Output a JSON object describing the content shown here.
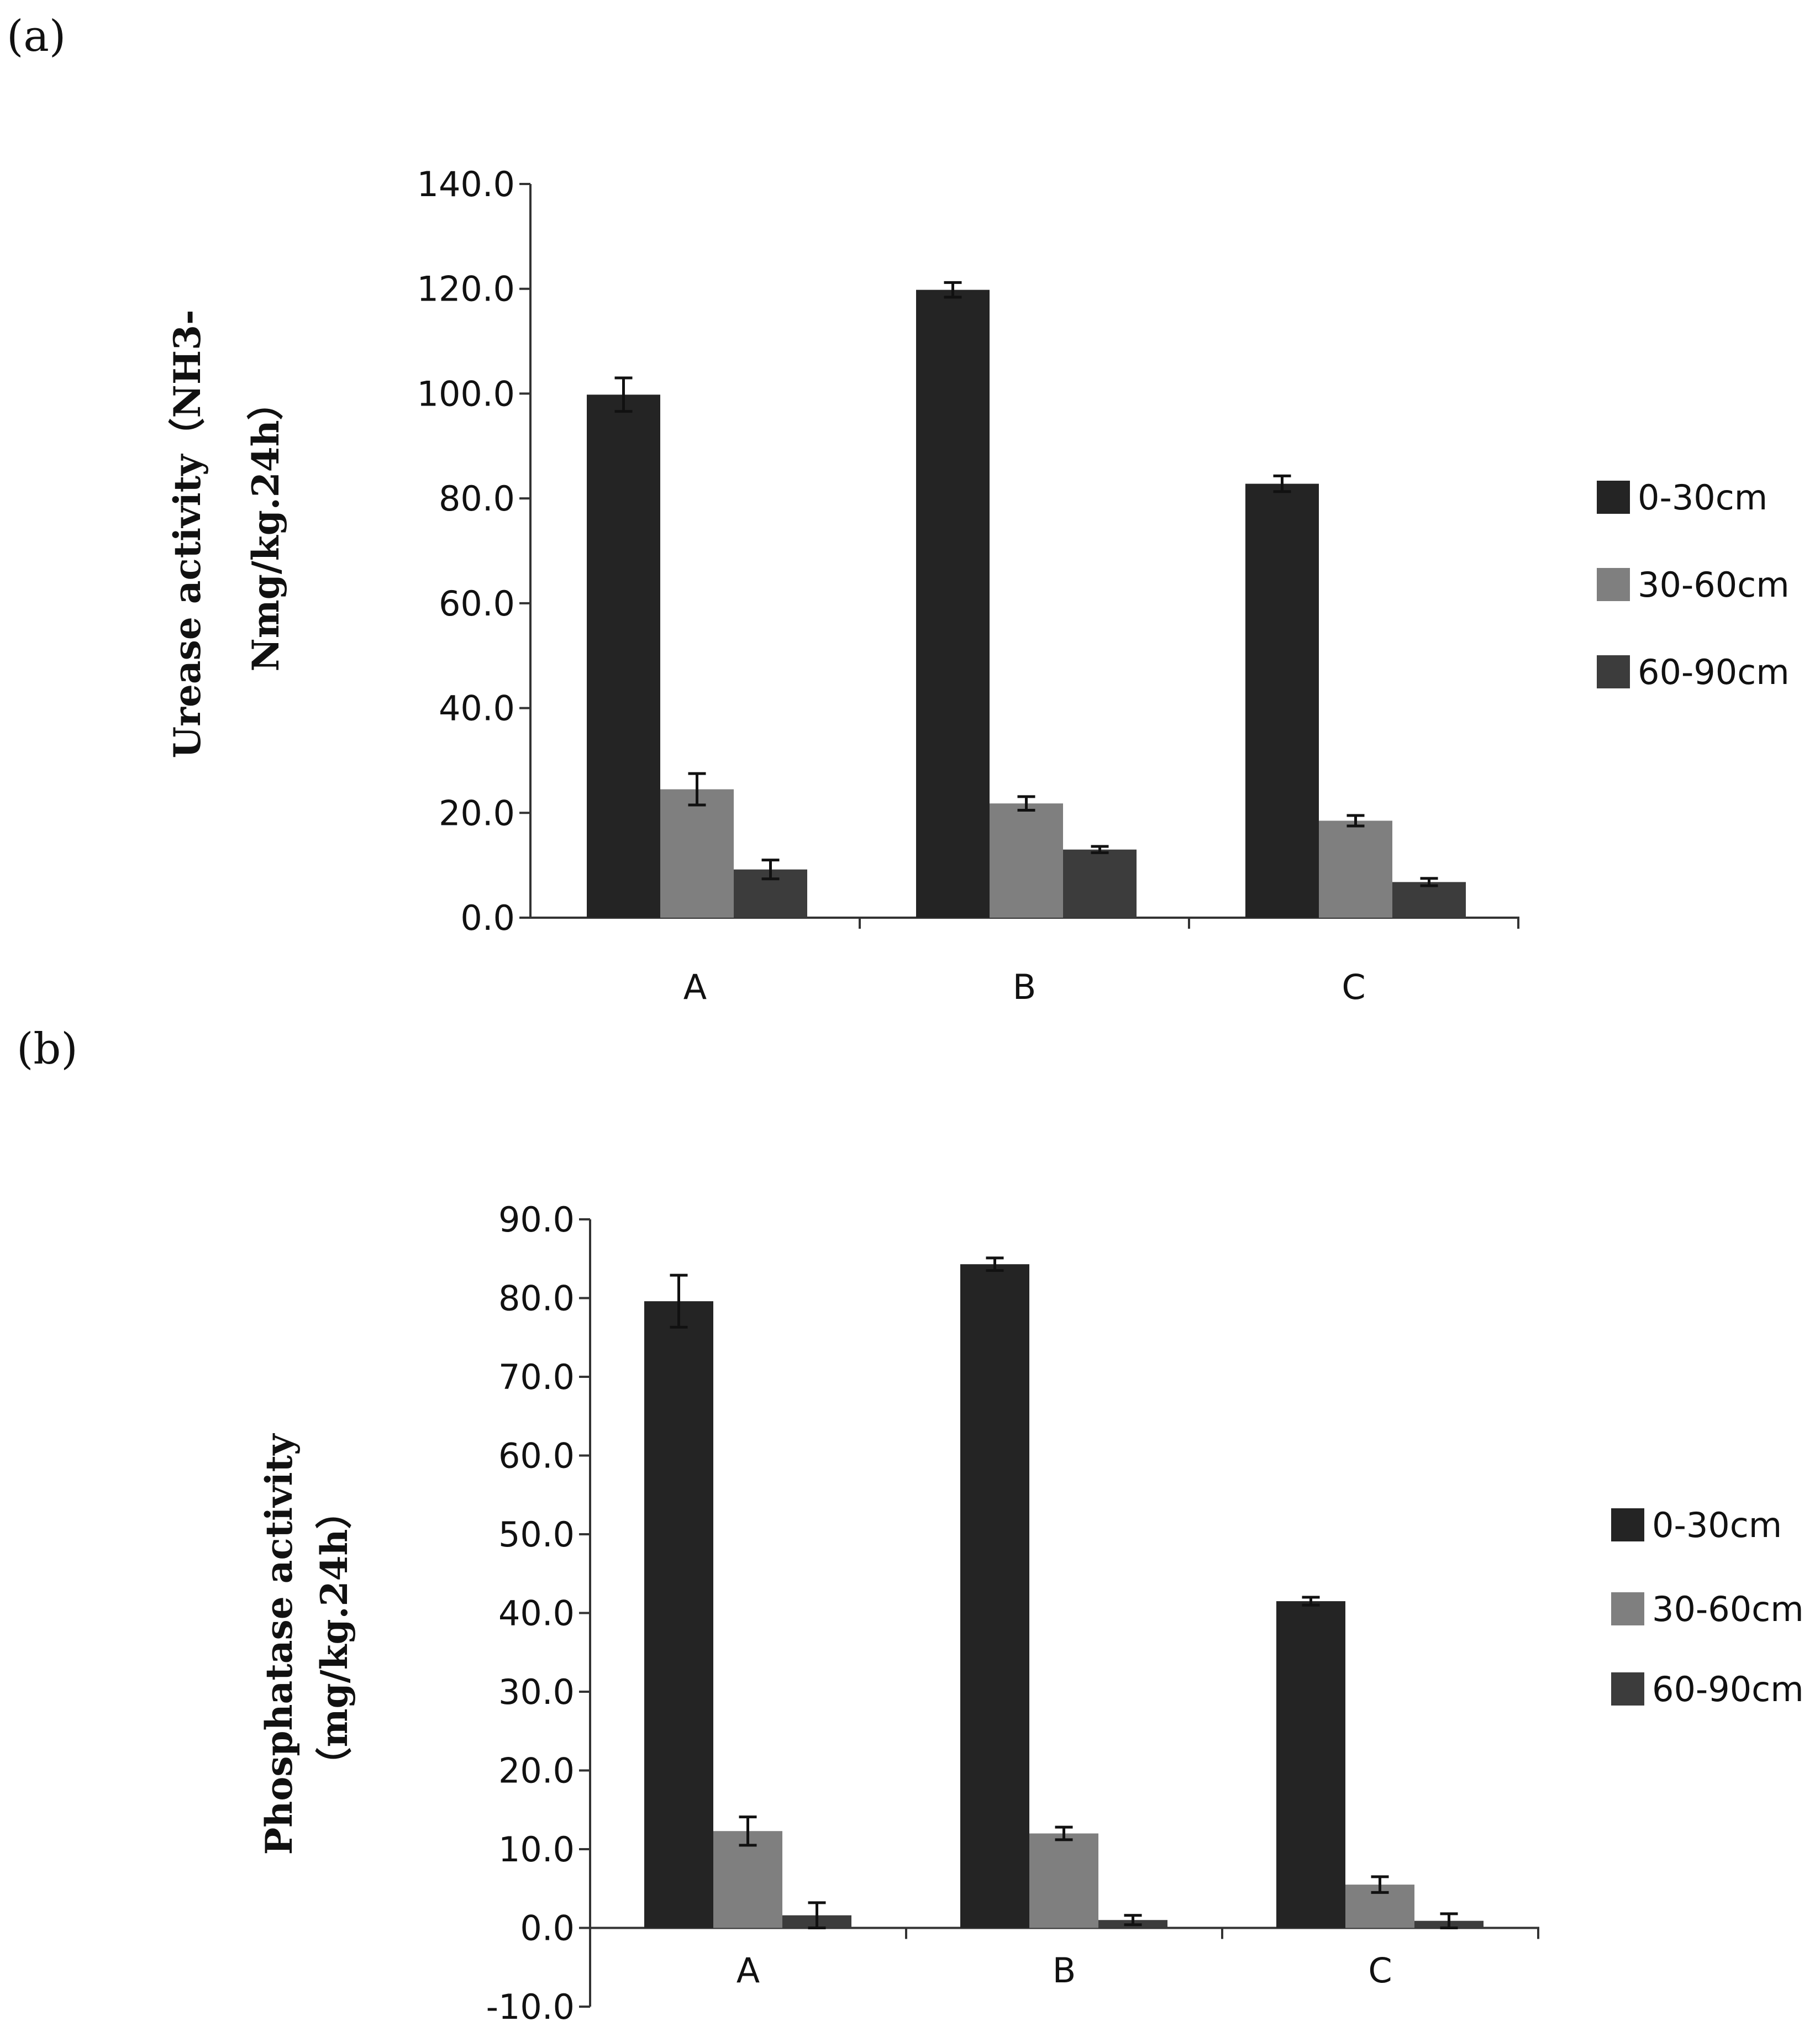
{
  "chart_data": [
    {
      "panel_label": "(a)",
      "type": "bar",
      "categories": [
        "A",
        "B",
        "C"
      ],
      "ylabel_lines": [
        "Urease activity（NH3-",
        "Nmg/kg.24h）"
      ],
      "ylim": [
        0,
        140
      ],
      "yticks": [
        "0.0",
        "20.0",
        "40.0",
        "60.0",
        "80.0",
        "100.0",
        "120.0",
        "140.0"
      ],
      "tick_step": 20,
      "series": [
        {
          "name": "0-30cm",
          "color": "#242424",
          "values": [
            99.8,
            119.8,
            82.8
          ],
          "errors": [
            3.2,
            1.4,
            1.5
          ]
        },
        {
          "name": "30-60cm",
          "color": "#7f7f7f",
          "values": [
            24.5,
            21.8,
            18.5
          ],
          "errors": [
            3.0,
            1.3,
            1.0
          ]
        },
        {
          "name": "60-90cm",
          "color": "#3c3c3c",
          "values": [
            9.2,
            13.0,
            6.8
          ],
          "errors": [
            1.8,
            0.6,
            0.7
          ]
        }
      ]
    },
    {
      "panel_label": "(b)",
      "type": "bar",
      "categories": [
        "A",
        "B",
        "C"
      ],
      "ylabel_lines": [
        "Phosphatase activity",
        "（mg/kg.24h）"
      ],
      "ylim": [
        -10,
        90
      ],
      "yticks": [
        "-10.0",
        "0.0",
        "10.0",
        "20.0",
        "30.0",
        "40.0",
        "50.0",
        "60.0",
        "70.0",
        "80.0",
        "90.0"
      ],
      "tick_step": 10,
      "series": [
        {
          "name": "0-30cm",
          "color": "#242424",
          "values": [
            79.6,
            84.3,
            41.5
          ],
          "errors": [
            3.3,
            0.8,
            0.5
          ]
        },
        {
          "name": "30-60cm",
          "color": "#7f7f7f",
          "values": [
            12.3,
            12.0,
            5.5
          ],
          "errors": [
            1.8,
            0.8,
            1.0
          ]
        },
        {
          "name": "60-90cm",
          "color": "#3c3c3c",
          "values": [
            1.6,
            1.0,
            0.9
          ],
          "errors": [
            1.6,
            0.6,
            0.9
          ]
        }
      ]
    }
  ]
}
